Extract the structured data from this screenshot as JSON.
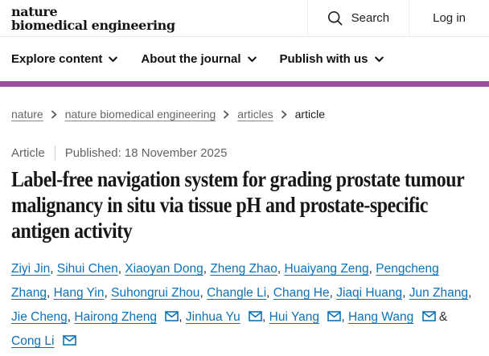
{
  "header": {
    "logo_line1": "nature",
    "logo_line2": "biomedical engineering",
    "search_label": "Search",
    "login_label": "Log in"
  },
  "nav": {
    "items": [
      {
        "label": "Explore content"
      },
      {
        "label": "About the journal"
      },
      {
        "label": "Publish with us"
      }
    ]
  },
  "breadcrumb": {
    "items": [
      {
        "label": "nature"
      },
      {
        "label": "nature biomedical engineering"
      },
      {
        "label": "articles"
      },
      {
        "label": "article"
      }
    ]
  },
  "article": {
    "type_label": "Article",
    "published_label": "Published: 18 November 2025",
    "title": "Label-free navigation system for grading prostate tumour malignancy in situ via tissue pH and prostate-specific antigen activity",
    "authors": [
      {
        "name": "Ziyi Jin",
        "email_icon": false
      },
      {
        "name": "Sihui Chen",
        "email_icon": false
      },
      {
        "name": "Xiaoyan Dong",
        "email_icon": false
      },
      {
        "name": "Zheng Zhao",
        "email_icon": false
      },
      {
        "name": "Huaiyang Zeng",
        "email_icon": false
      },
      {
        "name": "Pengcheng Zhang",
        "email_icon": false
      },
      {
        "name": "Hang Yin",
        "email_icon": false
      },
      {
        "name": "Suhongrui Zhou",
        "email_icon": false
      },
      {
        "name": "Changle Li",
        "email_icon": false
      },
      {
        "name": "Chang He",
        "email_icon": false
      },
      {
        "name": "Jiaqi Huang",
        "email_icon": false
      },
      {
        "name": "Jun Zhang",
        "email_icon": false
      },
      {
        "name": "Jie Cheng",
        "email_icon": false
      },
      {
        "name": "Hairong Zheng",
        "email_icon": true
      },
      {
        "name": "Jinhua Yu",
        "email_icon": true
      },
      {
        "name": "Hui Yang",
        "email_icon": true
      },
      {
        "name": "Hang Wang",
        "email_icon": true
      },
      {
        "name": "Cong Li",
        "email_icon": true
      }
    ],
    "author_separator": ", ",
    "author_last_separator": " & "
  },
  "icons": {
    "search": "search-icon",
    "nav_chevron": "chevron-down-icon",
    "breadcrumb_chevron": "chevron-right-icon",
    "email": "email-icon"
  },
  "colors": {
    "accent_purple": "#9b4f9c",
    "link_blue": "#0c72b5"
  }
}
